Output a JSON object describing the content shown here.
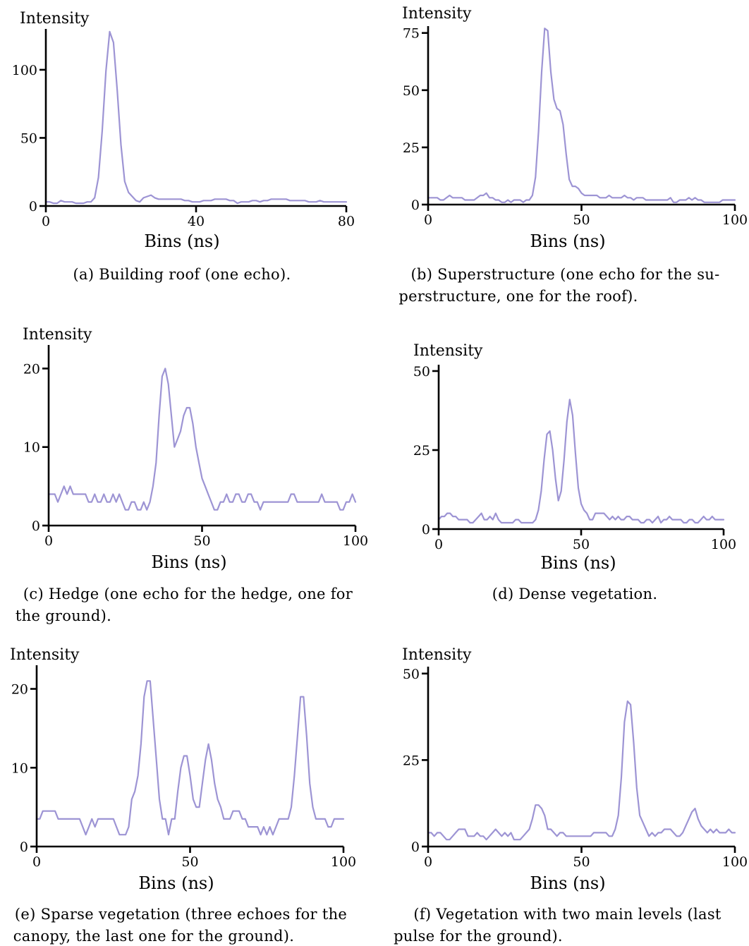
{
  "series_color": "#9d94d4",
  "chart_data": [
    {
      "type": "line",
      "ylabel": "Intensity",
      "xlabel": "Bins (ns)",
      "xlim": [
        0,
        80
      ],
      "ylim": [
        0,
        130
      ],
      "xticks": [
        0,
        40,
        80
      ],
      "yticks": [
        0,
        50,
        100
      ],
      "caption": [
        "(a) Building roof (one echo)."
      ],
      "x": [
        0,
        1,
        2,
        3,
        4,
        5,
        6,
        7,
        8,
        9,
        10,
        11,
        12,
        13,
        14,
        15,
        16,
        17,
        18,
        19,
        20,
        21,
        22,
        23,
        24,
        25,
        26,
        27,
        28,
        29,
        30,
        31,
        32,
        33,
        34,
        35,
        36,
        37,
        38,
        39,
        40,
        41,
        42,
        43,
        44,
        45,
        46,
        47,
        48,
        49,
        50,
        51,
        52,
        53,
        54,
        55,
        56,
        57,
        58,
        59,
        60,
        61,
        62,
        63,
        64,
        65,
        66,
        67,
        68,
        69,
        70,
        71,
        72,
        73,
        74,
        75,
        76,
        77,
        78,
        79,
        80
      ],
      "values": [
        3,
        3,
        2,
        2,
        4,
        3,
        3,
        3,
        2,
        2,
        2,
        3,
        3,
        6,
        21,
        55,
        99,
        128,
        120,
        85,
        45,
        18,
        10,
        7,
        4,
        3,
        6,
        7,
        8,
        6,
        5,
        5,
        5,
        5,
        5,
        5,
        5,
        4,
        4,
        3,
        3,
        3,
        4,
        4,
        4,
        5,
        5,
        5,
        5,
        4,
        4,
        2,
        3,
        3,
        3,
        4,
        4,
        3,
        4,
        4,
        5,
        5,
        5,
        5,
        5,
        4,
        4,
        4,
        4,
        4,
        3,
        3,
        3,
        4,
        3,
        3,
        3,
        3,
        3,
        3,
        3
      ]
    },
    {
      "type": "line",
      "ylabel": "Intensity",
      "xlabel": "Bins (ns)",
      "xlim": [
        0,
        100
      ],
      "ylim": [
        0,
        78
      ],
      "xticks": [
        0,
        50,
        100
      ],
      "yticks": [
        0,
        25,
        50,
        75
      ],
      "caption": [
        "(b) Superstructure (one echo for the su-",
        "perstructure, one for the roof)."
      ],
      "x": [
        0,
        1,
        2,
        3,
        4,
        5,
        6,
        7,
        8,
        9,
        10,
        11,
        12,
        13,
        14,
        15,
        16,
        17,
        18,
        19,
        20,
        21,
        22,
        23,
        24,
        25,
        26,
        27,
        28,
        29,
        30,
        31,
        32,
        33,
        34,
        35,
        36,
        37,
        38,
        39,
        40,
        41,
        42,
        43,
        44,
        45,
        46,
        47,
        48,
        49,
        50,
        51,
        52,
        53,
        54,
        55,
        56,
        57,
        58,
        59,
        60,
        61,
        62,
        63,
        64,
        65,
        66,
        67,
        68,
        69,
        70,
        71,
        72,
        73,
        74,
        75,
        76,
        77,
        78,
        79,
        80,
        81,
        82,
        83,
        84,
        85,
        86,
        87,
        88,
        89,
        90,
        91,
        92,
        93,
        94,
        95,
        96,
        97,
        98,
        99,
        100
      ],
      "values": [
        3,
        3,
        3,
        3,
        2,
        2,
        3,
        4,
        3,
        3,
        3,
        3,
        2,
        2,
        2,
        2,
        3,
        4,
        4,
        5,
        3,
        3,
        2,
        2,
        1,
        1,
        2,
        1,
        2,
        2,
        2,
        1,
        2,
        2,
        4,
        12,
        32,
        58,
        77,
        76,
        58,
        46,
        42,
        41,
        35,
        22,
        11,
        8,
        8,
        7,
        5,
        4,
        4,
        4,
        4,
        4,
        3,
        3,
        3,
        4,
        3,
        3,
        3,
        3,
        4,
        3,
        3,
        2,
        3,
        3,
        3,
        2,
        2,
        2,
        2,
        2,
        2,
        2,
        2,
        3,
        1,
        1,
        2,
        2,
        2,
        3,
        2,
        3,
        2,
        2,
        1,
        1,
        1,
        1,
        1,
        1,
        2,
        2,
        2,
        2,
        2
      ]
    },
    {
      "type": "line",
      "ylabel": "Intensity",
      "xlabel": "Bins (ns)",
      "xlim": [
        0,
        100
      ],
      "ylim": [
        0,
        23
      ],
      "xticks": [
        0,
        50,
        100
      ],
      "yticks": [
        0,
        10,
        20
      ],
      "caption": [
        "(c) Hedge (one echo for the hedge, one for",
        "the ground)."
      ],
      "x": [
        0,
        1,
        2,
        3,
        4,
        5,
        6,
        7,
        8,
        9,
        10,
        11,
        12,
        13,
        14,
        15,
        16,
        17,
        18,
        19,
        20,
        21,
        22,
        23,
        24,
        25,
        26,
        27,
        28,
        29,
        30,
        31,
        32,
        33,
        34,
        35,
        36,
        37,
        38,
        39,
        40,
        41,
        42,
        43,
        44,
        45,
        46,
        47,
        48,
        49,
        50,
        51,
        52,
        53,
        54,
        55,
        56,
        57,
        58,
        59,
        60,
        61,
        62,
        63,
        64,
        65,
        66,
        67,
        68,
        69,
        70,
        71,
        72,
        73,
        74,
        75,
        76,
        77,
        78,
        79,
        80,
        81,
        82,
        83,
        84,
        85,
        86,
        87,
        88,
        89,
        90,
        91,
        92,
        93,
        94,
        95,
        96,
        97,
        98,
        99,
        100
      ],
      "values": [
        4,
        4,
        4,
        3,
        4,
        5,
        4,
        5,
        4,
        4,
        4,
        4,
        4,
        3,
        3,
        4,
        3,
        3,
        4,
        3,
        3,
        4,
        3,
        4,
        3,
        2,
        2,
        3,
        3,
        2,
        2,
        3,
        2,
        3,
        5,
        8,
        14,
        19,
        20,
        18,
        14,
        10,
        11,
        12,
        14,
        15,
        15,
        13,
        10,
        8,
        6,
        5,
        4,
        3,
        2,
        2,
        3,
        3,
        4,
        3,
        3,
        4,
        4,
        3,
        3,
        4,
        4,
        3,
        3,
        2,
        3,
        3,
        3,
        3,
        3,
        3,
        3,
        3,
        3,
        4,
        4,
        3,
        3,
        3,
        3,
        3,
        3,
        3,
        3,
        4,
        3,
        3,
        3,
        3,
        3,
        2,
        2,
        3,
        3,
        4,
        3
      ]
    },
    {
      "type": "line",
      "ylabel": "Intensity",
      "xlabel": "Bins (ns)",
      "xlim": [
        0,
        100
      ],
      "ylim": [
        0,
        52
      ],
      "xticks": [
        0,
        50,
        100
      ],
      "yticks": [
        0,
        25,
        50
      ],
      "caption": [
        "(d) Dense vegetation."
      ],
      "x": [
        0,
        1,
        2,
        3,
        4,
        5,
        6,
        7,
        8,
        9,
        10,
        11,
        12,
        13,
        14,
        15,
        16,
        17,
        18,
        19,
        20,
        21,
        22,
        23,
        24,
        25,
        26,
        27,
        28,
        29,
        30,
        31,
        32,
        33,
        34,
        35,
        36,
        37,
        38,
        39,
        40,
        41,
        42,
        43,
        44,
        45,
        46,
        47,
        48,
        49,
        50,
        51,
        52,
        53,
        54,
        55,
        56,
        57,
        58,
        59,
        60,
        61,
        62,
        63,
        64,
        65,
        66,
        67,
        68,
        69,
        70,
        71,
        72,
        73,
        74,
        75,
        76,
        77,
        78,
        79,
        80,
        81,
        82,
        83,
        84,
        85,
        86,
        87,
        88,
        89,
        90,
        91,
        92,
        93,
        94,
        95,
        96,
        97,
        98,
        99,
        100
      ],
      "values": [
        3,
        4,
        4,
        5,
        5,
        4,
        4,
        3,
        3,
        3,
        3,
        2,
        2,
        3,
        4,
        5,
        3,
        3,
        4,
        3,
        5,
        3,
        2,
        2,
        2,
        2,
        2,
        3,
        3,
        2,
        2,
        2,
        2,
        2,
        3,
        6,
        12,
        22,
        30,
        31,
        25,
        16,
        9,
        12,
        22,
        34,
        41,
        36,
        24,
        13,
        8,
        6,
        5,
        3,
        3,
        5,
        5,
        5,
        5,
        4,
        3,
        4,
        3,
        4,
        3,
        3,
        4,
        4,
        3,
        3,
        3,
        2,
        2,
        3,
        3,
        2,
        3,
        4,
        2,
        3,
        3,
        4,
        3,
        3,
        3,
        3,
        2,
        2,
        3,
        3,
        2,
        2,
        3,
        4,
        3,
        3,
        4,
        3,
        3,
        3,
        3
      ]
    },
    {
      "type": "line",
      "ylabel": "Intensity",
      "xlabel": "Bins (ns)",
      "xlim": [
        0,
        100
      ],
      "ylim": [
        0,
        23
      ],
      "xticks": [
        0,
        50,
        100
      ],
      "yticks": [
        0,
        10,
        20
      ],
      "caption": [
        "(e) Sparse vegetation (three echoes for the",
        "canopy, the last one for the ground)."
      ],
      "x": [
        0,
        1,
        2,
        3,
        4,
        5,
        6,
        7,
        8,
        9,
        10,
        11,
        12,
        13,
        14,
        15,
        16,
        17,
        18,
        19,
        20,
        21,
        22,
        23,
        24,
        25,
        26,
        27,
        28,
        29,
        30,
        31,
        32,
        33,
        34,
        35,
        36,
        37,
        38,
        39,
        40,
        41,
        42,
        43,
        44,
        45,
        46,
        47,
        48,
        49,
        50,
        51,
        52,
        53,
        54,
        55,
        56,
        57,
        58,
        59,
        60,
        61,
        62,
        63,
        64,
        65,
        66,
        67,
        68,
        69,
        70,
        71,
        72,
        73,
        74,
        75,
        76,
        77,
        78,
        79,
        80,
        81,
        82,
        83,
        84,
        85,
        86,
        87,
        88,
        89,
        90,
        91,
        92,
        93,
        94,
        95,
        96,
        97,
        98,
        99,
        100
      ],
      "values": [
        3.5,
        3.5,
        4.5,
        4.5,
        4.5,
        4.5,
        4.5,
        3.5,
        3.5,
        3.5,
        3.5,
        3.5,
        3.5,
        3.5,
        3.5,
        2.5,
        1.5,
        2.5,
        3.5,
        2.5,
        3.5,
        3.5,
        3.5,
        3.5,
        3.5,
        3.5,
        2.5,
        1.5,
        1.5,
        1.5,
        2.5,
        6,
        7,
        9,
        13,
        19,
        21,
        21,
        16,
        11,
        6,
        3.5,
        3.5,
        1.5,
        3.5,
        3.5,
        7,
        10,
        11.5,
        11.5,
        9,
        6,
        5,
        5,
        8,
        11,
        13,
        11,
        8,
        6,
        5,
        3.5,
        3.5,
        3.5,
        4.5,
        4.5,
        4.5,
        3.5,
        3.5,
        2.5,
        2.5,
        2.5,
        2.5,
        1.5,
        2.5,
        1.5,
        2.5,
        1.5,
        2.5,
        3.5,
        3.5,
        3.5,
        3.5,
        5,
        9,
        14,
        19,
        19,
        14,
        8,
        5,
        3.5,
        3.5,
        3.5,
        3.5,
        2.5,
        2.5,
        3.5,
        3.5,
        3.5,
        3.5
      ]
    },
    {
      "type": "line",
      "ylabel": "Intensity",
      "xlabel": "Bins (ns)",
      "xlim": [
        0,
        100
      ],
      "ylim": [
        0,
        52
      ],
      "xticks": [
        0,
        50,
        100
      ],
      "yticks": [
        0,
        25,
        50
      ],
      "caption": [
        "(f) Vegetation with two main levels (last",
        "pulse for the ground)."
      ],
      "x": [
        0,
        1,
        2,
        3,
        4,
        5,
        6,
        7,
        8,
        9,
        10,
        11,
        12,
        13,
        14,
        15,
        16,
        17,
        18,
        19,
        20,
        21,
        22,
        23,
        24,
        25,
        26,
        27,
        28,
        29,
        30,
        31,
        32,
        33,
        34,
        35,
        36,
        37,
        38,
        39,
        40,
        41,
        42,
        43,
        44,
        45,
        46,
        47,
        48,
        49,
        50,
        51,
        52,
        53,
        54,
        55,
        56,
        57,
        58,
        59,
        60,
        61,
        62,
        63,
        64,
        65,
        66,
        67,
        68,
        69,
        70,
        71,
        72,
        73,
        74,
        75,
        76,
        77,
        78,
        79,
        80,
        81,
        82,
        83,
        84,
        85,
        86,
        87,
        88,
        89,
        90,
        91,
        92,
        93,
        94,
        95,
        96,
        97,
        98,
        99,
        100
      ],
      "values": [
        4,
        4,
        3,
        4,
        4,
        3,
        2,
        2,
        3,
        4,
        5,
        5,
        5,
        3,
        3,
        3,
        4,
        3,
        3,
        2,
        3,
        4,
        5,
        4,
        3,
        4,
        3,
        4,
        2,
        2,
        2,
        3,
        4,
        5,
        8,
        12,
        12,
        11,
        9,
        5,
        5,
        4,
        3,
        4,
        4,
        3,
        3,
        3,
        3,
        3,
        3,
        3,
        3,
        3,
        4,
        4,
        4,
        4,
        4,
        3,
        3,
        5,
        9,
        20,
        36,
        42,
        41,
        30,
        17,
        9,
        7,
        5,
        3,
        4,
        3,
        4,
        4,
        5,
        5,
        5,
        4,
        3,
        3,
        4,
        6,
        8,
        10,
        11,
        8,
        6,
        5,
        4,
        5,
        4,
        5,
        4,
        4,
        4,
        5,
        4,
        4
      ]
    }
  ]
}
